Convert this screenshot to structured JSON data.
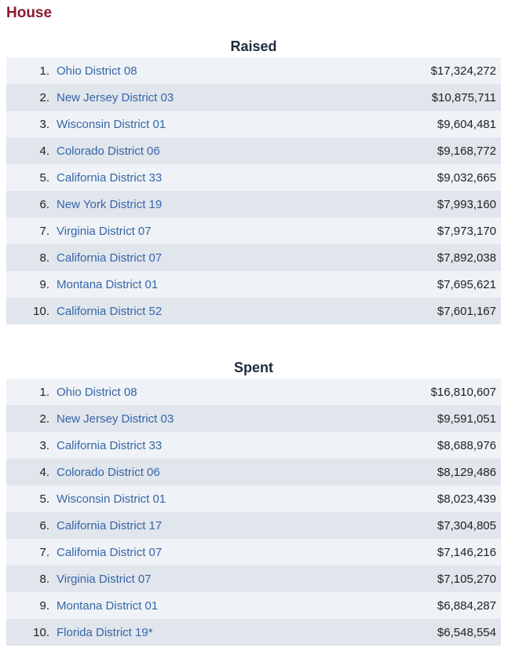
{
  "section": {
    "title": "House"
  },
  "colors": {
    "title": "#8b1a2f",
    "link": "#3566a8",
    "row_light": "#eff2f6",
    "row_dark": "#e1e5ec"
  },
  "raised": {
    "title": "Raised",
    "rows": [
      {
        "rank": "1.",
        "name": "Ohio District 08",
        "amount": "$17,324,272"
      },
      {
        "rank": "2.",
        "name": "New Jersey District 03",
        "amount": "$10,875,711"
      },
      {
        "rank": "3.",
        "name": "Wisconsin District 01",
        "amount": "$9,604,481"
      },
      {
        "rank": "4.",
        "name": "Colorado District 06",
        "amount": "$9,168,772"
      },
      {
        "rank": "5.",
        "name": "California District 33",
        "amount": "$9,032,665"
      },
      {
        "rank": "6.",
        "name": "New York District 19",
        "amount": "$7,993,160"
      },
      {
        "rank": "7.",
        "name": "Virginia District 07",
        "amount": "$7,973,170"
      },
      {
        "rank": "8.",
        "name": "California District 07",
        "amount": "$7,892,038"
      },
      {
        "rank": "9.",
        "name": "Montana District 01",
        "amount": "$7,695,621"
      },
      {
        "rank": "10.",
        "name": "California District 52",
        "amount": "$7,601,167"
      }
    ]
  },
  "spent": {
    "title": "Spent",
    "rows": [
      {
        "rank": "1.",
        "name": "Ohio District 08",
        "amount": "$16,810,607"
      },
      {
        "rank": "2.",
        "name": "New Jersey District 03",
        "amount": "$9,591,051"
      },
      {
        "rank": "3.",
        "name": "California District 33",
        "amount": "$8,688,976"
      },
      {
        "rank": "4.",
        "name": "Colorado District 06",
        "amount": "$8,129,486"
      },
      {
        "rank": "5.",
        "name": "Wisconsin District 01",
        "amount": "$8,023,439"
      },
      {
        "rank": "6.",
        "name": "California District 17",
        "amount": "$7,304,805"
      },
      {
        "rank": "7.",
        "name": "California District 07",
        "amount": "$7,146,216"
      },
      {
        "rank": "8.",
        "name": "Virginia District 07",
        "amount": "$7,105,270"
      },
      {
        "rank": "9.",
        "name": "Montana District 01",
        "amount": "$6,884,287"
      },
      {
        "rank": "10.",
        "name": "Florida District 19*",
        "amount": "$6,548,554"
      }
    ]
  }
}
